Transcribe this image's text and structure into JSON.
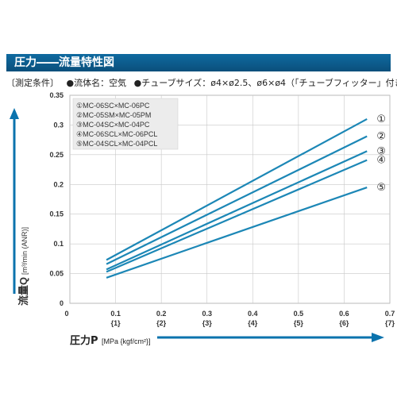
{
  "header": {
    "title": "圧力――流量特性図"
  },
  "conditions": {
    "label": "〔測定条件〕",
    "fluid": "●流体名：空気",
    "tube": "●チューブサイズ：ø4×ø2.5、ø6×ø4（「チューブフィッター」付き）"
  },
  "colors": {
    "accent": "#0b73ad",
    "line": "#1c87b6"
  },
  "chart_data": {
    "type": "line",
    "xlabel": "圧力P",
    "xlabel_unit": "[MPa {kgf/cm²}]",
    "ylabel": "流量Q",
    "ylabel_unit": "[m³/min (ANR)]",
    "xlim": [
      0,
      0.7
    ],
    "ylim": [
      0,
      0.35
    ],
    "x_ticks": [
      "0",
      "0.1",
      "0.2",
      "0.3",
      "0.4",
      "0.5",
      "0.6",
      "0.7"
    ],
    "x_ticks_kgf": [
      "{1}",
      "{2}",
      "{3}",
      "{4}",
      "{5}",
      "{6}",
      "{7}"
    ],
    "y_ticks": [
      "0",
      "0.05",
      "0.1",
      "0.15",
      "0.2",
      "0.25",
      "0.3",
      "0.35"
    ],
    "grid": true,
    "series": [
      {
        "name": "MC-06SC×MC-06PC",
        "marker": "①",
        "x": [
          0.08,
          0.65
        ],
        "y": [
          0.073,
          0.31
        ]
      },
      {
        "name": "MC-05SM×MC-05PM",
        "marker": "②",
        "x": [
          0.08,
          0.65
        ],
        "y": [
          0.066,
          0.281
        ]
      },
      {
        "name": "MC-04SC×MC-04PC",
        "marker": "③",
        "x": [
          0.08,
          0.65
        ],
        "y": [
          0.057,
          0.256
        ]
      },
      {
        "name": "MC-06SCL×MC-06PCL",
        "marker": "④",
        "x": [
          0.08,
          0.65
        ],
        "y": [
          0.053,
          0.241
        ]
      },
      {
        "name": "MC-04SCL×MC-04PCL",
        "marker": "⑤",
        "x": [
          0.08,
          0.65
        ],
        "y": [
          0.043,
          0.195
        ]
      }
    ]
  }
}
